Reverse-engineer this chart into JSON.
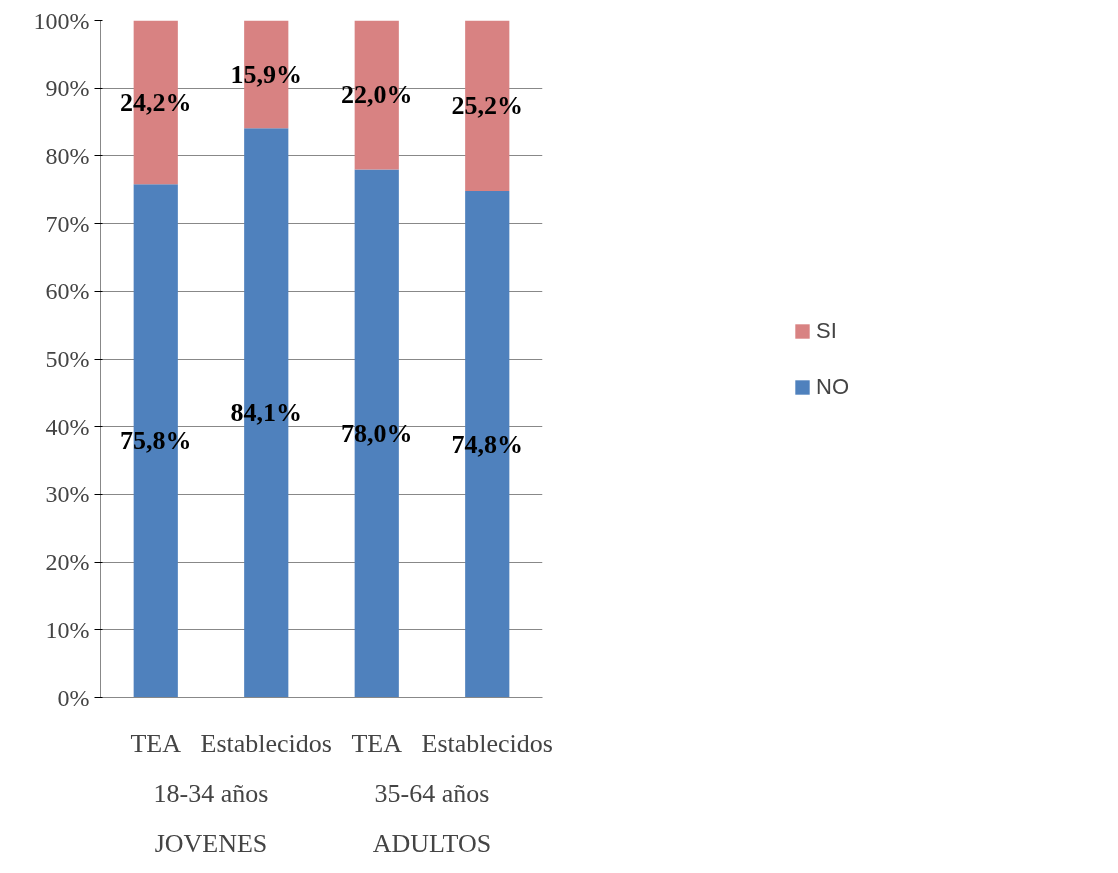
{
  "chart_data": {
    "type": "bar",
    "stacked": true,
    "categories": [
      "TEA",
      "Establecidos",
      "TEA",
      "Establecidos"
    ],
    "series": [
      {
        "name": "NO",
        "color": "#4f81bd",
        "values": [
          75.8,
          84.1,
          78.0,
          74.8
        ],
        "value_labels": [
          "75,8%",
          "84,1%",
          "78,0%",
          "74,8%"
        ]
      },
      {
        "name": "SI",
        "color": "#d88282",
        "values": [
          24.2,
          15.9,
          22.0,
          25.2
        ],
        "value_labels": [
          "24,2%",
          "15,9%",
          "22,0%",
          "25,2%"
        ]
      }
    ],
    "annotations": [
      "18-34 años",
      "JOVENES",
      "35-64 años",
      "ADULTOS"
    ],
    "ylim": [
      0,
      100
    ],
    "yticks": [
      {
        "value": 0,
        "label": "0%"
      },
      {
        "value": 10,
        "label": "10%"
      },
      {
        "value": 20,
        "label": "20%"
      },
      {
        "value": 30,
        "label": "30%"
      },
      {
        "value": 40,
        "label": "40%"
      },
      {
        "value": 50,
        "label": "50%"
      },
      {
        "value": 60,
        "label": "60%"
      },
      {
        "value": 70,
        "label": "70%"
      },
      {
        "value": 80,
        "label": "80%"
      },
      {
        "value": 90,
        "label": "90%"
      },
      {
        "value": 100,
        "label": "100%"
      }
    ],
    "grid": "y",
    "legend": "right"
  }
}
